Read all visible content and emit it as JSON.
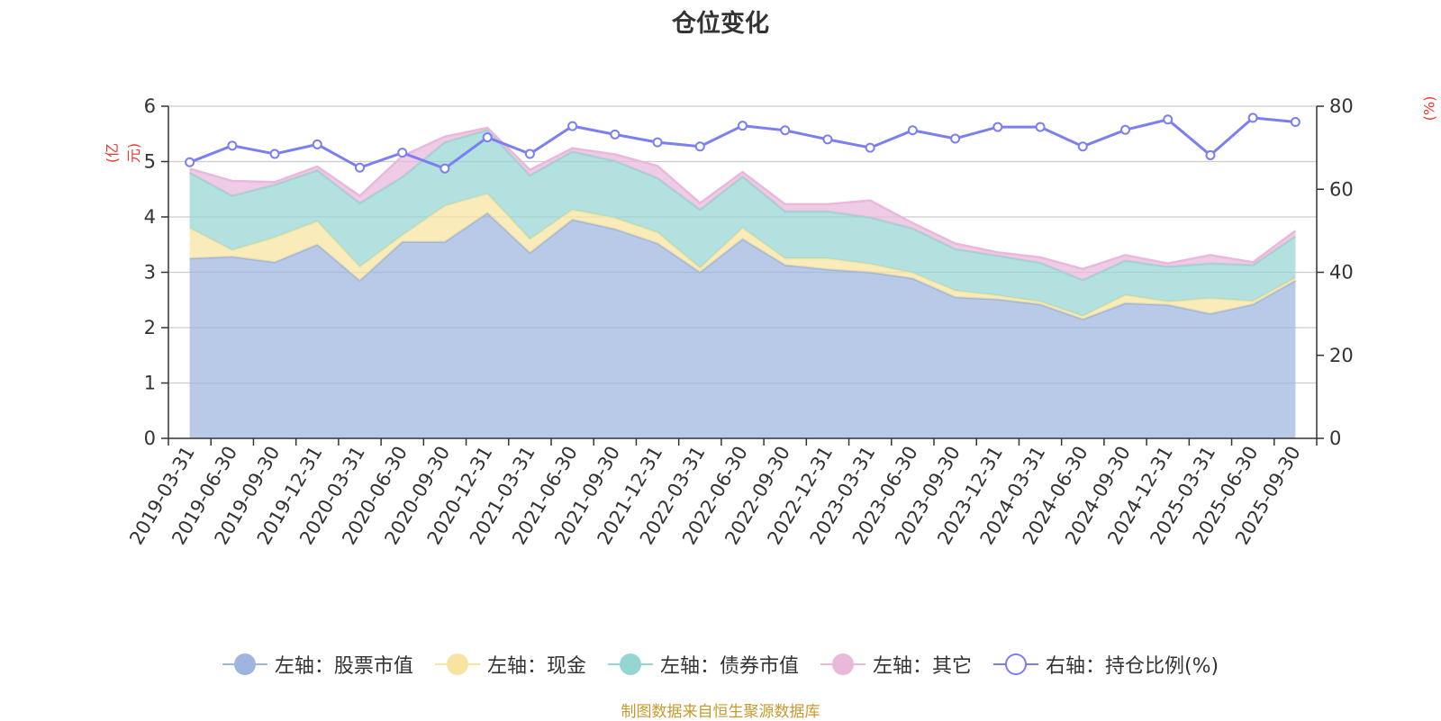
{
  "chart_data": {
    "type": "area",
    "title": "仓位变化",
    "left_axis_label": "(亿元)",
    "right_axis_label": "(%)",
    "left_ylim": [
      0,
      6
    ],
    "left_ticks": [
      "0",
      "1",
      "2",
      "3",
      "4",
      "5",
      "6"
    ],
    "right_ylim": [
      0,
      80
    ],
    "right_ticks": [
      "0",
      "20",
      "40",
      "60",
      "80"
    ],
    "categories": [
      "2019-03-31",
      "2019-06-30",
      "2019-09-30",
      "2019-12-31",
      "2020-03-31",
      "2020-06-30",
      "2020-09-30",
      "2020-12-31",
      "2021-03-31",
      "2021-06-30",
      "2021-09-30",
      "2021-12-31",
      "2022-03-31",
      "2022-06-30",
      "2022-09-30",
      "2022-12-31",
      "2023-03-31",
      "2023-06-30",
      "2023-09-30",
      "2023-12-31",
      "2024-03-31",
      "2024-06-30",
      "2024-09-30",
      "2024-12-31",
      "2025-03-31",
      "2025-06-30",
      "2025-09-30"
    ],
    "series": [
      {
        "name": "左轴：股票市值",
        "axis": "left",
        "stack": true,
        "color": "#9db5df",
        "values": [
          3.25,
          3.28,
          3.18,
          3.5,
          2.85,
          3.55,
          3.55,
          4.07,
          3.35,
          3.95,
          3.78,
          3.52,
          3.0,
          3.6,
          3.13,
          3.05,
          3.0,
          2.89,
          2.55,
          2.51,
          2.42,
          2.15,
          2.44,
          2.41,
          2.25,
          2.42,
          2.85
        ]
      },
      {
        "name": "左轴：现金",
        "axis": "left",
        "stack": true,
        "color": "#f6e4a0",
        "values": [
          0.55,
          0.12,
          0.45,
          0.42,
          0.25,
          0.12,
          0.65,
          0.35,
          0.25,
          0.18,
          0.2,
          0.2,
          0.08,
          0.2,
          0.12,
          0.2,
          0.15,
          0.1,
          0.12,
          0.07,
          0.05,
          0.06,
          0.15,
          0.06,
          0.28,
          0.06,
          0.05
        ]
      },
      {
        "name": "左轴：债券市值",
        "axis": "left",
        "stack": true,
        "color": "#96d6d2",
        "values": [
          1.0,
          0.98,
          0.95,
          0.92,
          1.15,
          1.05,
          1.15,
          1.15,
          1.15,
          1.05,
          1.03,
          0.98,
          1.05,
          0.93,
          0.85,
          0.85,
          0.84,
          0.8,
          0.75,
          0.72,
          0.7,
          0.65,
          0.62,
          0.63,
          0.63,
          0.65,
          0.75
        ]
      },
      {
        "name": "左轴：其它",
        "axis": "left",
        "stack": true,
        "color": "#e9b8db",
        "values": [
          0.07,
          0.27,
          0.05,
          0.07,
          0.13,
          0.38,
          0.1,
          0.04,
          0.1,
          0.06,
          0.12,
          0.22,
          0.12,
          0.08,
          0.13,
          0.13,
          0.31,
          0.1,
          0.1,
          0.06,
          0.1,
          0.2,
          0.1,
          0.06,
          0.15,
          0.05,
          0.1
        ]
      },
      {
        "name": "右轴：持仓比例(%)",
        "axis": "right",
        "stack": false,
        "color": "#7b7ff0",
        "values": [
          66.5,
          70.5,
          68.5,
          70.8,
          65.2,
          68.8,
          65.0,
          72.5,
          68.5,
          75.2,
          73.2,
          71.3,
          70.3,
          75.3,
          74.2,
          72.0,
          70.0,
          74.2,
          72.2,
          75.0,
          75.0,
          70.3,
          74.3,
          76.8,
          68.2,
          77.2,
          76.2
        ]
      }
    ],
    "source_note": "制图数据来自恒生聚源数据库"
  },
  "colors": {
    "axis_label_red": "#e8372c",
    "grid": "#cccccc",
    "axis": "#333333"
  }
}
